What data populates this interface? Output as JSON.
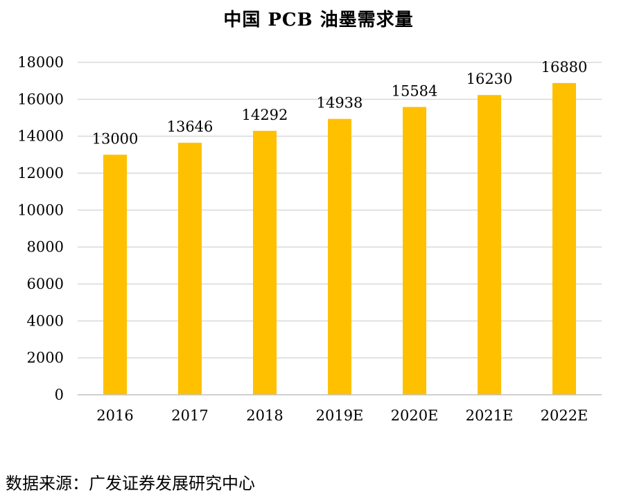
{
  "chart_data": {
    "type": "bar",
    "title": "中国 PCB 油墨需求量",
    "xlabel": "",
    "ylabel": "",
    "categories": [
      "2016",
      "2017",
      "2018",
      "2019E",
      "2020E",
      "2021E",
      "2022E"
    ],
    "values": [
      13000,
      13646,
      14292,
      14938,
      15584,
      16230,
      16880
    ],
    "data_labels": [
      "13000",
      "13646",
      "14292",
      "14938",
      "15584",
      "16230",
      "16880"
    ],
    "y_ticks": [
      0,
      2000,
      4000,
      6000,
      8000,
      10000,
      12000,
      14000,
      16000,
      18000
    ],
    "ylim": [
      0,
      18000
    ],
    "grid": true,
    "legend": "none",
    "bar_color": "#FFC000",
    "grid_color": "#D9D9D9"
  },
  "source_note": "数据来源：广发证券发展研究中心"
}
